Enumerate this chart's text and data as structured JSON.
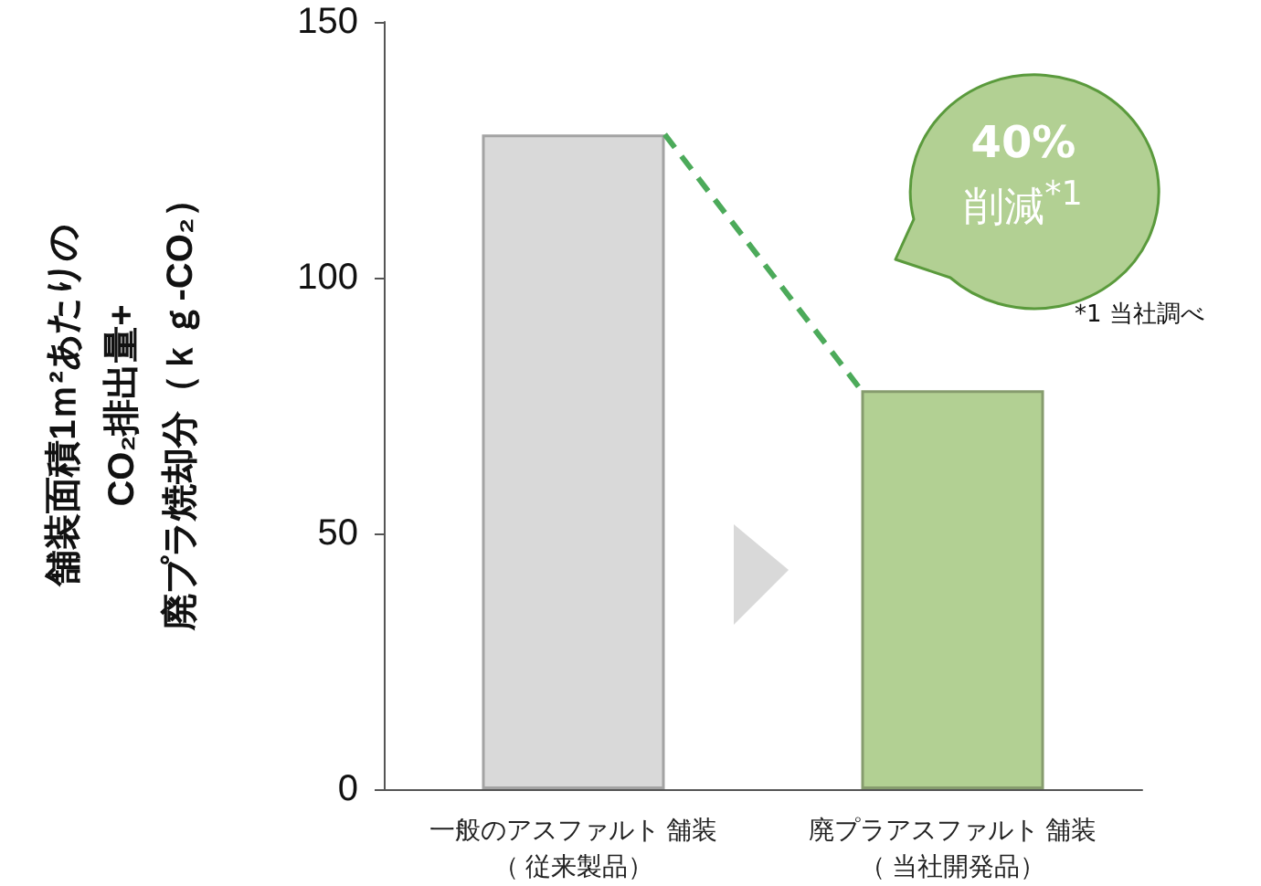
{
  "chart_data": {
    "type": "bar",
    "categories": [
      "一般のアスファルト 舗装（ 従来製品）",
      "廃プラアスファルト 舗装（ 当社開発品）"
    ],
    "values": [
      128,
      78
    ],
    "colors": [
      "#d9d9d9",
      "#b2d093"
    ],
    "ylim": [
      0,
      150
    ],
    "yticks": [
      0,
      50,
      100,
      150
    ],
    "ylabel": "舗装面積1ｍ²あたりの\nCO₂排出量+\n廃プラ焼却分（ｋｇ-CO₂）",
    "annotations": [
      "40%",
      "削減$^{*1}$",
      "*1 当社調べ"
    ]
  }
}
